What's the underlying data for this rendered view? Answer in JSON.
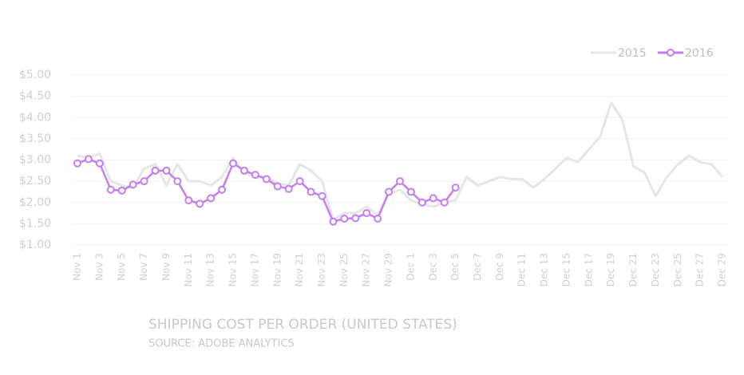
{
  "chart_data": {
    "type": "line",
    "title": "SHIPPING COST PER ORDER (UNITED STATES)",
    "subtitle": "SOURCE: ADOBE ANALYTICS",
    "categories": [
      "Nov 1",
      null,
      "Nov 3",
      null,
      "Nov 5",
      null,
      "Nov 7",
      null,
      "Nov 9",
      null,
      "Nov 11",
      null,
      "Nov 13",
      null,
      "Nov 15",
      null,
      "Nov 17",
      null,
      "Nov 19",
      null,
      "Nov 21",
      null,
      "Nov 23",
      null,
      "Nov 25",
      null,
      "Nov 27",
      null,
      "Nov 29",
      null,
      "Dec 1",
      null,
      "Dec 3",
      null,
      "Dec 5",
      null,
      "Dec 7",
      null,
      "Dec 9",
      null,
      "Dec 11",
      null,
      "Dec 13",
      null,
      "Dec 15",
      null,
      "Dec 17",
      null,
      "Dec 19",
      null,
      "Dec 21",
      null,
      "Dec 23",
      null,
      "Dec 25",
      null,
      "Dec 27",
      null,
      "Dec 29"
    ],
    "series": [
      {
        "name": "2015",
        "color": "#e6e6e6",
        "values": [
          3.1,
          3.05,
          3.15,
          2.5,
          2.4,
          2.35,
          2.8,
          2.9,
          2.4,
          2.9,
          2.5,
          2.5,
          2.4,
          2.6,
          3.05,
          2.7,
          2.6,
          2.6,
          2.45,
          2.4,
          2.9,
          2.75,
          2.5,
          1.6,
          1.75,
          1.75,
          1.9,
          1.7,
          2.2,
          2.3,
          2.05,
          1.95,
          1.9,
          2.0,
          2.05,
          2.6,
          2.4,
          2.5,
          2.6,
          2.55,
          2.55,
          2.35,
          2.55,
          2.8,
          3.05,
          2.95,
          3.25,
          3.55,
          4.35,
          3.95,
          2.85,
          2.7,
          2.15,
          2.6,
          2.9,
          3.1,
          2.95,
          2.9,
          2.6
        ]
      },
      {
        "name": "2016",
        "color": "#c57cf2",
        "values": [
          2.92,
          3.02,
          2.92,
          2.3,
          2.28,
          2.42,
          2.5,
          2.75,
          2.75,
          2.5,
          2.05,
          1.97,
          2.1,
          2.3,
          2.92,
          2.75,
          2.65,
          2.55,
          2.38,
          2.32,
          2.5,
          2.25,
          2.15,
          1.55,
          1.62,
          1.63,
          1.75,
          1.62,
          2.25,
          2.5,
          2.25,
          2.0,
          2.1,
          2.0,
          2.35,
          null,
          null,
          null,
          null,
          null,
          null,
          null,
          null,
          null,
          null,
          null,
          null,
          null,
          null,
          null,
          null,
          null,
          null,
          null,
          null,
          null,
          null,
          null,
          null
        ]
      }
    ],
    "ylim": [
      1,
      5
    ],
    "yticks": [
      {
        "value": 1,
        "label": "$1.00"
      },
      {
        "value": 1.5,
        "label": "$1.50"
      },
      {
        "value": 2,
        "label": "$2.00"
      },
      {
        "value": 2.5,
        "label": "$2.50"
      },
      {
        "value": 3,
        "label": "$3.00"
      },
      {
        "value": 3.5,
        "label": "$3.50"
      },
      {
        "value": 4,
        "label": "$4.00"
      },
      {
        "value": 4.5,
        "label": "$4.50"
      },
      {
        "value": 5,
        "label": "$5.00"
      }
    ],
    "grid": true,
    "legend": "top-right",
    "markers": [
      false,
      true
    ]
  }
}
